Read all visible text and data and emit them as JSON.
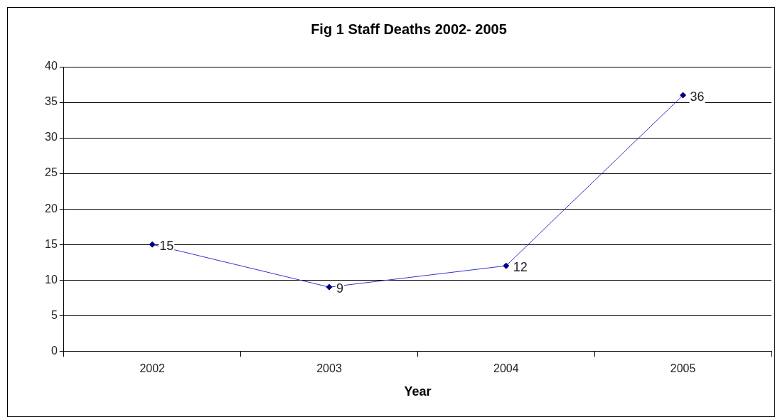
{
  "chart_data": {
    "type": "line",
    "title": "Fig 1 Staff Deaths 2002- 2005",
    "xlabel": "Year",
    "categories": [
      "2002",
      "2003",
      "2004",
      "2005"
    ],
    "series": [
      {
        "color": "#3333cc",
        "values": [
          15,
          9,
          12,
          36
        ]
      }
    ],
    "ylim": [
      0,
      40
    ],
    "yticks": [
      0,
      5,
      10,
      15,
      20,
      25,
      30,
      35,
      40
    ],
    "grid": "y",
    "legend": false,
    "marker": "diamond",
    "line_style": "solid",
    "data_labels": true
  }
}
